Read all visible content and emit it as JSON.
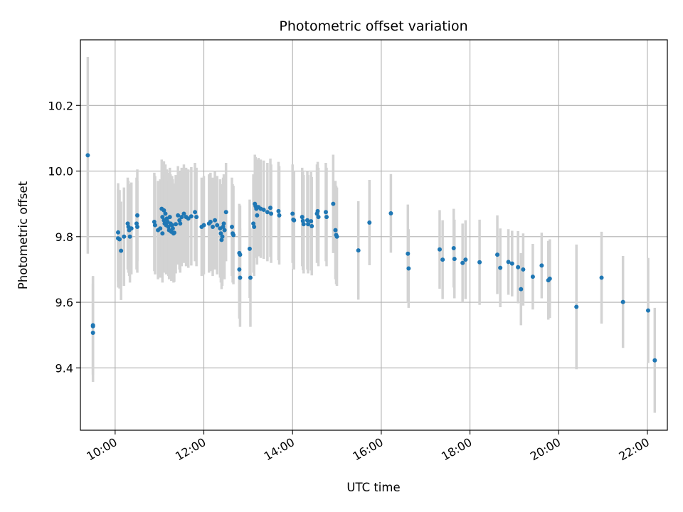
{
  "chart_data": {
    "type": "scatter",
    "title": "Photometric offset variation",
    "xlabel": "UTC time",
    "ylabel": "Photometric offset",
    "x_ticks": [
      "10:00",
      "12:00",
      "14:00",
      "16:00",
      "18:00",
      "20:00",
      "22:00"
    ],
    "y_ticks": [
      9.4,
      9.6,
      9.8,
      10.0,
      10.2
    ],
    "xlim": [
      "09:13",
      "22:27"
    ],
    "ylim": [
      9.21,
      10.4
    ],
    "grid": true,
    "colors": {
      "point": "#1f77b4",
      "errorbar": "#d3d3d3",
      "grid": "#b0b0b0"
    },
    "series": [
      {
        "points": [
          {
            "t": "09:23",
            "y": 10.048,
            "err": 0.3
          },
          {
            "t": "09:30",
            "y": 9.53,
            "err": 0.15
          },
          {
            "t": "09:30",
            "y": 9.527,
            "err": 0.15
          },
          {
            "t": "09:30",
            "y": 9.507,
            "err": 0.15
          },
          {
            "t": "10:04",
            "y": 9.813,
            "err": 0.15
          },
          {
            "t": "10:04",
            "y": 9.795,
            "err": 0.15
          },
          {
            "t": "10:06",
            "y": 9.792,
            "err": 0.15
          },
          {
            "t": "10:08",
            "y": 9.757,
            "err": 0.15
          },
          {
            "t": "10:12",
            "y": 9.8,
            "err": 0.15
          },
          {
            "t": "10:17",
            "y": 9.84,
            "err": 0.14
          },
          {
            "t": "10:18",
            "y": 9.83,
            "err": 0.14
          },
          {
            "t": "10:19",
            "y": 9.82,
            "err": 0.14
          },
          {
            "t": "10:20",
            "y": 9.8,
            "err": 0.14
          },
          {
            "t": "10:22",
            "y": 9.825,
            "err": 0.14
          },
          {
            "t": "10:29",
            "y": 9.84,
            "err": 0.14
          },
          {
            "t": "10:30",
            "y": 9.83,
            "err": 0.14
          },
          {
            "t": "10:30",
            "y": 9.865,
            "err": 0.14
          },
          {
            "t": "10:53",
            "y": 9.845,
            "err": 0.15
          },
          {
            "t": "10:54",
            "y": 9.835,
            "err": 0.15
          },
          {
            "t": "10:58",
            "y": 9.82,
            "err": 0.15
          },
          {
            "t": "11:01",
            "y": 9.825,
            "err": 0.15
          },
          {
            "t": "11:03",
            "y": 9.885,
            "err": 0.15
          },
          {
            "t": "11:04",
            "y": 9.86,
            "err": 0.15
          },
          {
            "t": "11:04",
            "y": 9.81,
            "err": 0.15
          },
          {
            "t": "11:06",
            "y": 9.88,
            "err": 0.15
          },
          {
            "t": "11:06",
            "y": 9.85,
            "err": 0.15
          },
          {
            "t": "11:07",
            "y": 9.84,
            "err": 0.15
          },
          {
            "t": "11:08",
            "y": 9.87,
            "err": 0.15
          },
          {
            "t": "11:09",
            "y": 9.835,
            "err": 0.15
          },
          {
            "t": "11:10",
            "y": 9.855,
            "err": 0.15
          },
          {
            "t": "11:11",
            "y": 9.845,
            "err": 0.15
          },
          {
            "t": "11:12",
            "y": 9.83,
            "err": 0.15
          },
          {
            "t": "11:13",
            "y": 9.82,
            "err": 0.15
          },
          {
            "t": "11:14",
            "y": 9.86,
            "err": 0.15
          },
          {
            "t": "11:15",
            "y": 9.84,
            "err": 0.15
          },
          {
            "t": "11:16",
            "y": 9.815,
            "err": 0.15
          },
          {
            "t": "11:17",
            "y": 9.835,
            "err": 0.15
          },
          {
            "t": "11:18",
            "y": 9.825,
            "err": 0.15
          },
          {
            "t": "11:19",
            "y": 9.81,
            "err": 0.15
          },
          {
            "t": "11:20",
            "y": 9.812,
            "err": 0.15
          },
          {
            "t": "11:22",
            "y": 9.838,
            "err": 0.15
          },
          {
            "t": "11:25",
            "y": 9.865,
            "err": 0.15
          },
          {
            "t": "11:27",
            "y": 9.85,
            "err": 0.15
          },
          {
            "t": "11:28",
            "y": 9.84,
            "err": 0.15
          },
          {
            "t": "11:30",
            "y": 9.86,
            "err": 0.15
          },
          {
            "t": "11:33",
            "y": 9.87,
            "err": 0.15
          },
          {
            "t": "11:36",
            "y": 9.86,
            "err": 0.15
          },
          {
            "t": "11:39",
            "y": 9.855,
            "err": 0.15
          },
          {
            "t": "11:43",
            "y": 9.862,
            "err": 0.15
          },
          {
            "t": "11:48",
            "y": 9.875,
            "err": 0.15
          },
          {
            "t": "11:50",
            "y": 9.86,
            "err": 0.15
          },
          {
            "t": "11:57",
            "y": 9.83,
            "err": 0.15
          },
          {
            "t": "12:00",
            "y": 9.835,
            "err": 0.15
          },
          {
            "t": "12:07",
            "y": 9.84,
            "err": 0.15
          },
          {
            "t": "12:09",
            "y": 9.845,
            "err": 0.15
          },
          {
            "t": "12:12",
            "y": 9.83,
            "err": 0.15
          },
          {
            "t": "12:15",
            "y": 9.85,
            "err": 0.15
          },
          {
            "t": "12:18",
            "y": 9.835,
            "err": 0.15
          },
          {
            "t": "12:22",
            "y": 9.825,
            "err": 0.15
          },
          {
            "t": "12:23",
            "y": 9.81,
            "err": 0.15
          },
          {
            "t": "12:24",
            "y": 9.79,
            "err": 0.15
          },
          {
            "t": "12:25",
            "y": 9.8,
            "err": 0.15
          },
          {
            "t": "12:26",
            "y": 9.83,
            "err": 0.15
          },
          {
            "t": "12:27",
            "y": 9.84,
            "err": 0.15
          },
          {
            "t": "12:28",
            "y": 9.82,
            "err": 0.15
          },
          {
            "t": "12:30",
            "y": 9.875,
            "err": 0.15
          },
          {
            "t": "12:38",
            "y": 9.83,
            "err": 0.15
          },
          {
            "t": "12:39",
            "y": 9.81,
            "err": 0.15
          },
          {
            "t": "12:40",
            "y": 9.805,
            "err": 0.15
          },
          {
            "t": "12:48",
            "y": 9.75,
            "err": 0.15
          },
          {
            "t": "12:49",
            "y": 9.745,
            "err": 0.15
          },
          {
            "t": "12:48",
            "y": 9.7,
            "err": 0.15
          },
          {
            "t": "12:49",
            "y": 9.675,
            "err": 0.15
          },
          {
            "t": "13:02",
            "y": 9.763,
            "err": 0.15
          },
          {
            "t": "13:03",
            "y": 9.675,
            "err": 0.15
          },
          {
            "t": "13:07",
            "y": 9.84,
            "err": 0.15
          },
          {
            "t": "13:08",
            "y": 9.83,
            "err": 0.15
          },
          {
            "t": "13:09",
            "y": 9.9,
            "err": 0.15
          },
          {
            "t": "13:10",
            "y": 9.893,
            "err": 0.15
          },
          {
            "t": "13:11",
            "y": 9.885,
            "err": 0.15
          },
          {
            "t": "13:12",
            "y": 9.865,
            "err": 0.15
          },
          {
            "t": "13:14",
            "y": 9.89,
            "err": 0.15
          },
          {
            "t": "13:17",
            "y": 9.885,
            "err": 0.15
          },
          {
            "t": "13:21",
            "y": 9.882,
            "err": 0.15
          },
          {
            "t": "13:26",
            "y": 9.875,
            "err": 0.15
          },
          {
            "t": "13:30",
            "y": 9.888,
            "err": 0.15
          },
          {
            "t": "13:31",
            "y": 9.87,
            "err": 0.15
          },
          {
            "t": "13:41",
            "y": 9.878,
            "err": 0.15
          },
          {
            "t": "13:42",
            "y": 9.865,
            "err": 0.15
          },
          {
            "t": "14:00",
            "y": 9.87,
            "err": 0.15
          },
          {
            "t": "14:01",
            "y": 9.852,
            "err": 0.15
          },
          {
            "t": "14:02",
            "y": 9.85,
            "err": 0.15
          },
          {
            "t": "14:13",
            "y": 9.86,
            "err": 0.15
          },
          {
            "t": "14:14",
            "y": 9.848,
            "err": 0.15
          },
          {
            "t": "14:15",
            "y": 9.838,
            "err": 0.15
          },
          {
            "t": "14:20",
            "y": 9.85,
            "err": 0.15
          },
          {
            "t": "14:21",
            "y": 9.838,
            "err": 0.15
          },
          {
            "t": "14:25",
            "y": 9.847,
            "err": 0.15
          },
          {
            "t": "14:26",
            "y": 9.832,
            "err": 0.15
          },
          {
            "t": "14:33",
            "y": 9.87,
            "err": 0.15
          },
          {
            "t": "14:34",
            "y": 9.878,
            "err": 0.15
          },
          {
            "t": "14:35",
            "y": 9.86,
            "err": 0.15
          },
          {
            "t": "14:45",
            "y": 9.875,
            "err": 0.15
          },
          {
            "t": "14:46",
            "y": 9.86,
            "err": 0.15
          },
          {
            "t": "14:55",
            "y": 9.9,
            "err": 0.15
          },
          {
            "t": "14:58",
            "y": 9.82,
            "err": 0.15
          },
          {
            "t": "14:59",
            "y": 9.805,
            "err": 0.15
          },
          {
            "t": "15:00",
            "y": 9.8,
            "err": 0.15
          },
          {
            "t": "15:29",
            "y": 9.758,
            "err": 0.15
          },
          {
            "t": "15:44",
            "y": 9.843,
            "err": 0.13
          },
          {
            "t": "16:13",
            "y": 9.871,
            "err": 0.12
          },
          {
            "t": "16:36",
            "y": 9.748,
            "err": 0.15
          },
          {
            "t": "16:37",
            "y": 9.703,
            "err": 0.12
          },
          {
            "t": "17:19",
            "y": 9.761,
            "err": 0.12
          },
          {
            "t": "17:23",
            "y": 9.73,
            "err": 0.12
          },
          {
            "t": "17:38",
            "y": 9.765,
            "err": 0.12
          },
          {
            "t": "17:39",
            "y": 9.732,
            "err": 0.12
          },
          {
            "t": "17:50",
            "y": 9.72,
            "err": 0.12
          },
          {
            "t": "17:54",
            "y": 9.73,
            "err": 0.12
          },
          {
            "t": "18:13",
            "y": 9.722,
            "err": 0.13
          },
          {
            "t": "18:37",
            "y": 9.745,
            "err": 0.12
          },
          {
            "t": "18:41",
            "y": 9.705,
            "err": 0.12
          },
          {
            "t": "18:52",
            "y": 9.723,
            "err": 0.1
          },
          {
            "t": "18:57",
            "y": 9.718,
            "err": 0.1
          },
          {
            "t": "19:05",
            "y": 9.707,
            "err": 0.11
          },
          {
            "t": "19:09",
            "y": 9.64,
            "err": 0.11
          },
          {
            "t": "19:12",
            "y": 9.7,
            "err": 0.11
          },
          {
            "t": "19:25",
            "y": 9.678,
            "err": 0.1
          },
          {
            "t": "19:37",
            "y": 9.712,
            "err": 0.1
          },
          {
            "t": "19:46",
            "y": 9.667,
            "err": 0.12
          },
          {
            "t": "19:48",
            "y": 9.672,
            "err": 0.12
          },
          {
            "t": "20:24",
            "y": 9.586,
            "err": 0.19
          },
          {
            "t": "20:58",
            "y": 9.675,
            "err": 0.14
          },
          {
            "t": "21:27",
            "y": 9.601,
            "err": 0.14
          },
          {
            "t": "22:01",
            "y": 9.575,
            "err": 0.16
          },
          {
            "t": "22:10",
            "y": 9.423,
            "err": 0.16
          }
        ]
      }
    ]
  }
}
